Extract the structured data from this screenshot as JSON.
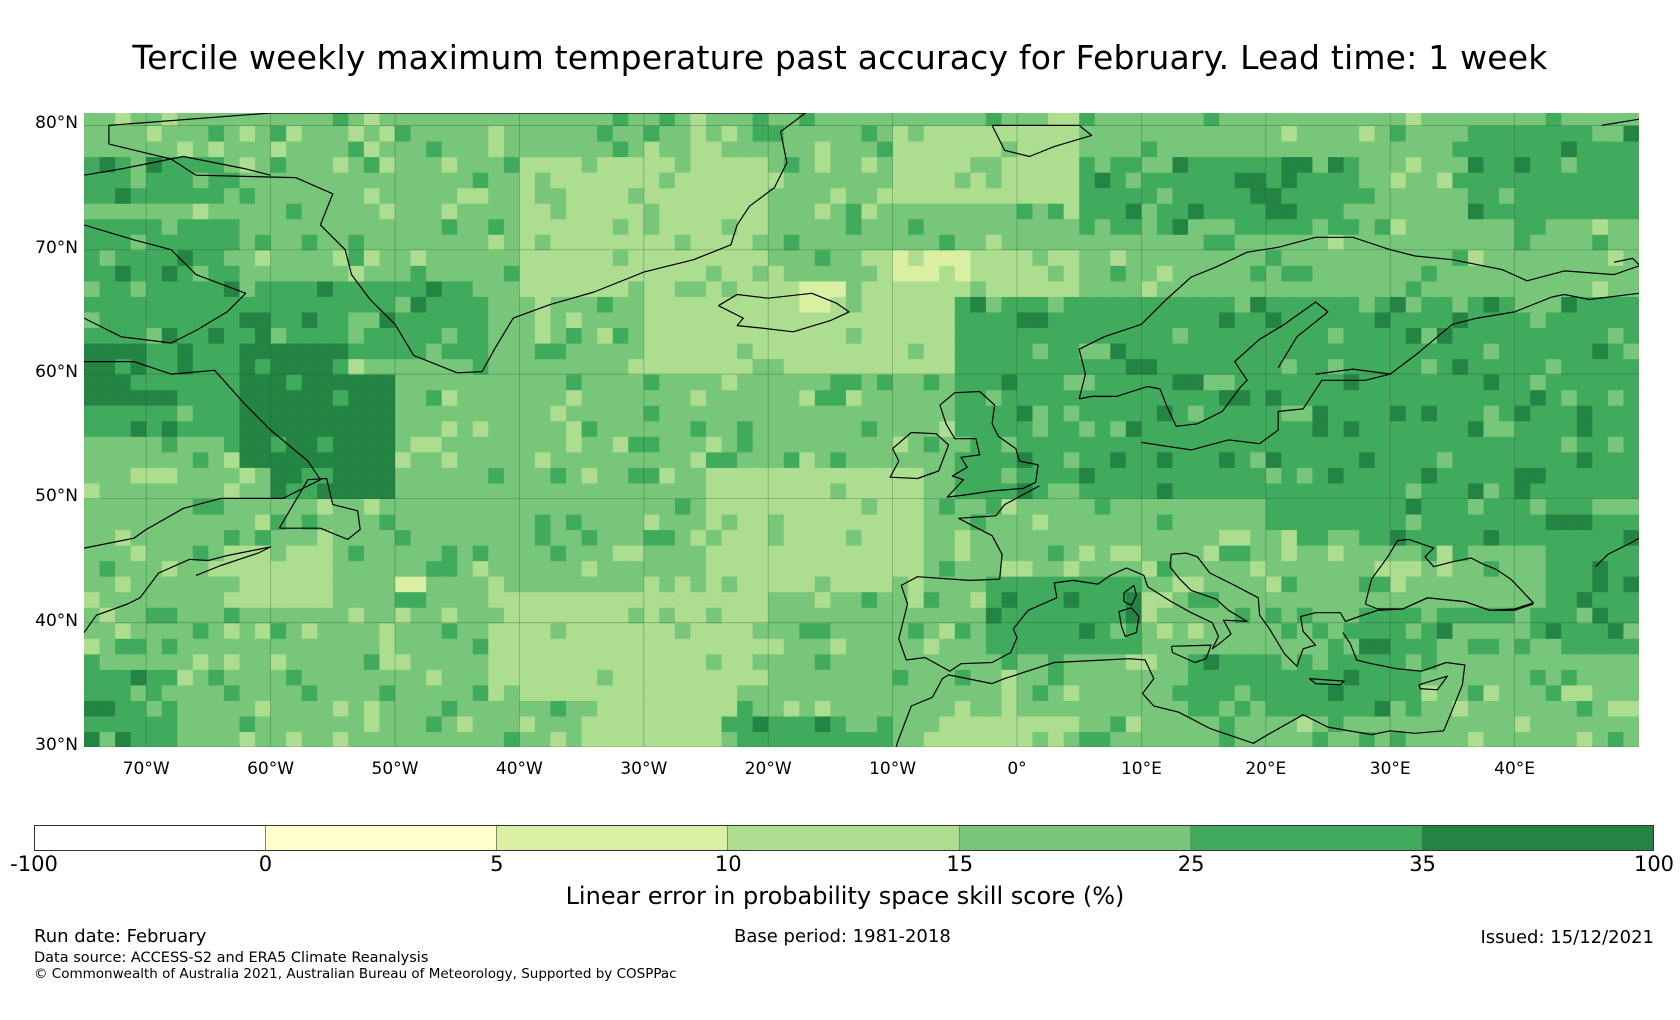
{
  "title": "Tercile weekly maximum temperature past accuracy for February. Lead time: 1 week",
  "map": {
    "extent": {
      "lon_min": -75,
      "lon_max": 50,
      "lat_min": 30,
      "lat_max": 81
    },
    "lat_ticks": [
      {
        "value": 80,
        "label": "80°N"
      },
      {
        "value": 70,
        "label": "70°N"
      },
      {
        "value": 60,
        "label": "60°N"
      },
      {
        "value": 50,
        "label": "50°N"
      },
      {
        "value": 40,
        "label": "40°N"
      },
      {
        "value": 30,
        "label": "30°N"
      }
    ],
    "lon_ticks": [
      {
        "value": -70,
        "label": "70°W"
      },
      {
        "value": -60,
        "label": "60°W"
      },
      {
        "value": -50,
        "label": "50°W"
      },
      {
        "value": -40,
        "label": "40°W"
      },
      {
        "value": -30,
        "label": "30°W"
      },
      {
        "value": -20,
        "label": "20°W"
      },
      {
        "value": -10,
        "label": "10°W"
      },
      {
        "value": 0,
        "label": "0°"
      },
      {
        "value": 10,
        "label": "10°E"
      },
      {
        "value": 20,
        "label": "20°E"
      },
      {
        "value": 30,
        "label": "30°E"
      },
      {
        "value": 40,
        "label": "40°E"
      }
    ],
    "regions": [
      {
        "name": "north-atlantic-background",
        "bin": 4,
        "lon": [
          -75,
          50
        ],
        "lat": [
          30,
          81
        ]
      },
      {
        "name": "labrador-sea-west",
        "bin": 5,
        "lon": [
          -75,
          -62
        ],
        "lat": [
          55,
          72
        ]
      },
      {
        "name": "canada-north",
        "bin": 5,
        "lon": [
          -75,
          -64
        ],
        "lat": [
          74,
          78
        ]
      },
      {
        "name": "hudson-strait-dark",
        "bin": 6,
        "lon": [
          -75,
          -70
        ],
        "lat": [
          58,
          63
        ]
      },
      {
        "name": "greenland-coast",
        "bin": 5,
        "lon": [
          -62,
          -42
        ],
        "lat": [
          61,
          68
        ]
      },
      {
        "name": "newfoundland-shelf",
        "bin": 6,
        "lon": [
          -60,
          -50
        ],
        "lat": [
          50,
          60
        ]
      },
      {
        "name": "labrador-dark",
        "bin": 6,
        "lon": [
          -62,
          -54
        ],
        "lat": [
          52,
          63
        ]
      },
      {
        "name": "denmark-strait",
        "bin": 3,
        "lon": [
          -40,
          -20
        ],
        "lat": [
          66,
          77
        ]
      },
      {
        "name": "iceland-plateau",
        "bin": 3,
        "lon": [
          -30,
          -12
        ],
        "lat": [
          60,
          67
        ]
      },
      {
        "name": "norwegian-sea-light",
        "bin": 3,
        "lon": [
          -12,
          5
        ],
        "lat": [
          60,
          70
        ]
      },
      {
        "name": "fram-strait-light",
        "bin": 3,
        "lon": [
          -10,
          5
        ],
        "lat": [
          74,
          80
        ]
      },
      {
        "name": "jan-mayen-light",
        "bin": 2,
        "lon": [
          -10,
          -4
        ],
        "lat": [
          67,
          70
        ]
      },
      {
        "name": "iceland-south-light",
        "bin": 2,
        "lon": [
          -17,
          -14
        ],
        "lat": [
          65,
          67
        ]
      },
      {
        "name": "barents-sea",
        "bin": 5,
        "lon": [
          5,
          28
        ],
        "lat": [
          71,
          78
        ]
      },
      {
        "name": "svalbard-dark",
        "bin": 5,
        "lon": [
          35,
          50
        ],
        "lat": [
          73,
          80
        ]
      },
      {
        "name": "scandinavia-dark",
        "bin": 5,
        "lon": [
          -5,
          50
        ],
        "lat": [
          48,
          66
        ]
      },
      {
        "name": "russia-dark",
        "bin": 5,
        "lon": [
          28,
          50
        ],
        "lat": [
          38,
          66
        ]
      },
      {
        "name": "central-europe",
        "bin": 4,
        "lon": [
          -5,
          20
        ],
        "lat": [
          44,
          50
        ]
      },
      {
        "name": "iberia",
        "bin": 4,
        "lon": [
          -10,
          0
        ],
        "lat": [
          36,
          44
        ]
      },
      {
        "name": "mid-atlantic-light",
        "bin": 3,
        "lon": [
          -25,
          -8
        ],
        "lat": [
          42,
          52
        ]
      },
      {
        "name": "azores-light",
        "bin": 3,
        "lon": [
          -42,
          -20
        ],
        "lat": [
          34,
          42
        ]
      },
      {
        "name": "subtropical-light",
        "bin": 3,
        "lon": [
          -35,
          -22
        ],
        "lat": [
          30,
          36
        ]
      },
      {
        "name": "northwest-atlantic-spot",
        "bin": 3,
        "lon": [
          -64,
          -55
        ],
        "lat": [
          41,
          46
        ]
      },
      {
        "name": "gulf-stream-spot",
        "bin": 2,
        "lon": [
          -50,
          -48
        ],
        "lat": [
          42,
          44
        ]
      },
      {
        "name": "canary-dark",
        "bin": 5,
        "lon": [
          -24,
          -10
        ],
        "lat": [
          30,
          33
        ]
      },
      {
        "name": "sahara-light",
        "bin": 3,
        "lon": [
          -8,
          5
        ],
        "lat": [
          30,
          32
        ]
      },
      {
        "name": "mediterranean-dark",
        "bin": 5,
        "lon": [
          -2,
          10
        ],
        "lat": [
          38,
          44
        ]
      },
      {
        "name": "eastern-med-dark",
        "bin": 5,
        "lon": [
          14,
          32
        ],
        "lat": [
          32,
          38
        ]
      },
      {
        "name": "black-sea",
        "bin": 4,
        "lon": [
          28,
          42
        ],
        "lat": [
          41,
          46
        ]
      },
      {
        "name": "sw-atlantic-dark",
        "bin": 5,
        "lon": [
          -75,
          -68
        ],
        "lat": [
          30,
          36
        ]
      }
    ],
    "countries": [
      "greenland",
      "iceland",
      "canada-baffin",
      "labrador",
      "newfoundland",
      "nova-scotia",
      "svalbard",
      "scandinavia",
      "finland",
      "russia",
      "ireland",
      "great-britain",
      "iberia",
      "france",
      "italy",
      "balkans",
      "turkey",
      "north-africa",
      "corsica-sardinia",
      "sicily",
      "crete",
      "cyprus",
      "black-sea",
      "caspian-area"
    ]
  },
  "colorbar": {
    "bins": [
      {
        "from": -100,
        "to": 0,
        "color": "#ffffff"
      },
      {
        "from": 0,
        "to": 5,
        "color": "#ffffcc"
      },
      {
        "from": 5,
        "to": 10,
        "color": "#d9f0a3"
      },
      {
        "from": 10,
        "to": 15,
        "color": "#addd8e"
      },
      {
        "from": 15,
        "to": 25,
        "color": "#78c679"
      },
      {
        "from": 25,
        "to": 35,
        "color": "#41ab5d"
      },
      {
        "from": 35,
        "to": 100,
        "color": "#238443"
      }
    ],
    "tick_labels": [
      "-100",
      "0",
      "5",
      "10",
      "15",
      "25",
      "35",
      "100"
    ],
    "label": "Linear error in probability space skill score (%)"
  },
  "footer": {
    "run_date": "Run date: February",
    "base_period": "Base period: 1981-2018",
    "issued": "Issued: 15/12/2021",
    "data_source": "Data source: ACCESS-S2 and ERA5 Climate Reanalysis",
    "copyright": "© Commonwealth of Australia 2021, Australian Bureau of Meteorology, Supported by COSPPac"
  }
}
